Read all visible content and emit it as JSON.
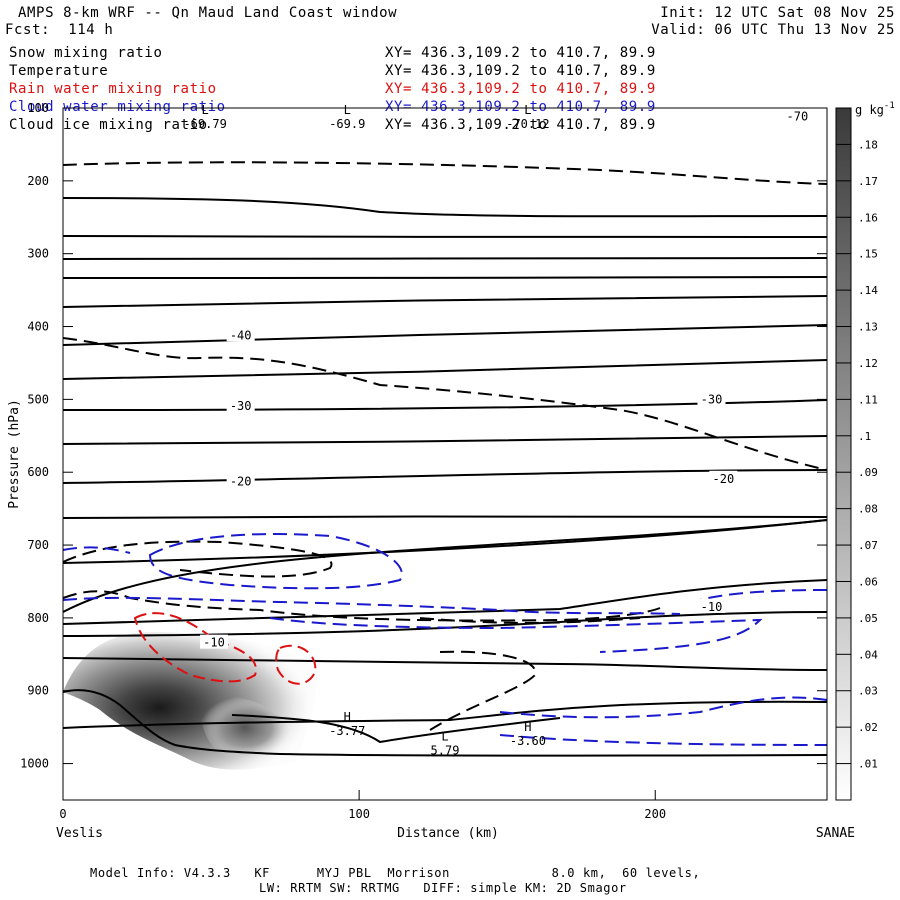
{
  "header": {
    "title": "AMPS 8-km WRF -- Qn Maud Land Coast window",
    "forecast": "Fcst:  114 h",
    "init": "Init: 12 UTC Sat 08 Nov 25",
    "valid": "Valid: 06 UTC Thu 13 Nov 25"
  },
  "legend": [
    {
      "name": "Snow mixing ratio",
      "xy": "XY= 436.3,109.2 to 410.7, 89.9",
      "color": "#000000"
    },
    {
      "name": "Temperature",
      "xy": "XY= 436.3,109.2 to 410.7, 89.9",
      "color": "#000000"
    },
    {
      "name": "Rain water mixing ratio",
      "xy": "XY= 436.3,109.2 to 410.7, 89.9",
      "color": "#dd1111"
    },
    {
      "name": "Cloud water mixing ratio",
      "xy": "XY= 436.3,109.2 to 410.7, 89.9",
      "color": "#1a1acc"
    },
    {
      "name": "Cloud ice mixing ratio",
      "xy": "XY= 436.3,109.2 to 410.7, 89.9",
      "color": "#000000"
    }
  ],
  "chart_data": {
    "type": "contour cross-section",
    "xlabel": "Distance (km)",
    "ylabel": "Pressure (hPa)",
    "xlim": [
      0,
      258
    ],
    "ylim": [
      1050,
      100
    ],
    "y_scale": "linear, inverted",
    "x_ticks": [
      0,
      100,
      200
    ],
    "y_ticks": [
      100,
      200,
      300,
      400,
      500,
      600,
      700,
      800,
      900,
      1000
    ],
    "x_endpoints": {
      "left": "Veslis",
      "right": "SANAE"
    },
    "colorbar": {
      "unit": "g kg",
      "unit_exp": "-1",
      "ticks": [
        ".18",
        ".17",
        ".16",
        ".15",
        ".14",
        ".13",
        ".12",
        ".11",
        ".1",
        ".09",
        ".08",
        ".07",
        ".06",
        ".05",
        ".04",
        ".03",
        ".02",
        ".01"
      ],
      "range": [
        0,
        0.19
      ]
    },
    "temperature_labels": [
      {
        "text": "-70",
        "x": 248,
        "p": 112
      },
      {
        "text": "-40",
        "x": 60,
        "p": 412
      },
      {
        "text": "-30",
        "x": 60,
        "p": 509
      },
      {
        "text": "-30",
        "x": 219,
        "p": 500
      },
      {
        "text": "-20",
        "x": 60,
        "p": 613
      },
      {
        "text": "-20",
        "x": 223,
        "p": 609
      },
      {
        "text": "-10",
        "x": 219,
        "p": 785
      },
      {
        "text": "-10",
        "x": 51,
        "p": 834
      }
    ],
    "extrema": [
      {
        "kind": "H",
        "value": "-3.77",
        "x": 96,
        "p": 958
      },
      {
        "kind": "L",
        "value": "5.79",
        "x": 129,
        "p": 985
      },
      {
        "kind": "H",
        "value": "-3.60",
        "x": 157,
        "p": 972
      },
      {
        "kind": "L",
        "value": "-69.9",
        "x": 96,
        "p": 125
      },
      {
        "kind": "L",
        "value": "-69.79",
        "x": 48,
        "p": 125
      },
      {
        "kind": "L",
        "value": "-70.12",
        "x": 157,
        "p": 125
      }
    ]
  },
  "footer": {
    "line1": "Model Info: V4.3.3   KF      MYJ PBL  Morrison             8.0 km,  60 levels,",
    "line2": "LW: RRTM SW: RRTMG   DIFF: simple KM: 2D Smagor"
  }
}
